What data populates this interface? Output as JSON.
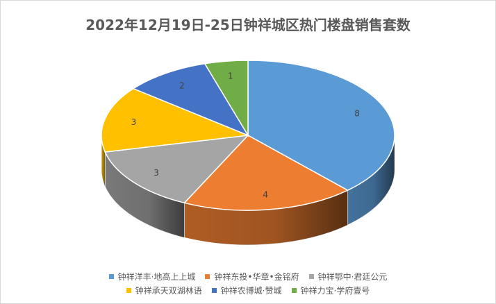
{
  "chart_data": {
    "type": "pie",
    "title": "2022年12月19日-25日钟祥城区热门楼盘销售套数",
    "categories": [
      "钟祥洋丰·地高上上城",
      "钟祥东投•华章•金铭府",
      "钟祥鄂中·君廷公元",
      "钟祥承天双湖林语",
      "钟祥农博城·赞城",
      "钟祥力宝·学府壹号"
    ],
    "values": [
      8,
      4,
      3,
      3,
      2,
      1
    ],
    "colors": [
      "#5B9BD5",
      "#ED7D31",
      "#A5A5A5",
      "#FFC000",
      "#4472C4",
      "#70AD47"
    ],
    "legend_position": "bottom",
    "style": "3d"
  }
}
